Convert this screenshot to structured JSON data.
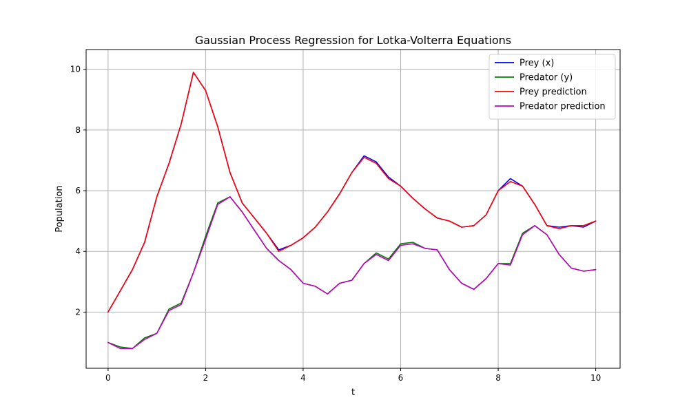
{
  "chart_data": {
    "type": "line",
    "title": "Gaussian Process Regression for Lotka-Volterra Equations",
    "xlabel": "t",
    "ylabel": "Population",
    "xlim": [
      -0.45,
      10.5
    ],
    "ylim": [
      0.15,
      10.65
    ],
    "xticks": [
      "0",
      "2",
      "4",
      "6",
      "8",
      "10"
    ],
    "yticks": [
      "2",
      "4",
      "6",
      "8",
      "10"
    ],
    "grid": true,
    "legend_position": "upper right",
    "x": [
      0,
      0.25,
      0.5,
      0.75,
      1.0,
      1.25,
      1.5,
      1.75,
      2.0,
      2.25,
      2.5,
      2.75,
      3.0,
      3.25,
      3.5,
      3.75,
      4.0,
      4.25,
      4.5,
      4.75,
      5.0,
      5.25,
      5.5,
      5.75,
      6.0,
      6.25,
      6.5,
      6.75,
      7.0,
      7.25,
      7.5,
      7.75,
      8.0,
      8.25,
      8.5,
      8.75,
      9.0,
      9.25,
      9.5,
      9.75,
      10.0
    ],
    "series": [
      {
        "name": "Prey (x)",
        "color": "#0000ff",
        "values": [
          2.0,
          2.7,
          3.4,
          4.3,
          5.8,
          6.9,
          8.2,
          9.9,
          9.3,
          8.1,
          6.6,
          5.6,
          5.1,
          4.6,
          4.05,
          4.2,
          4.45,
          4.8,
          5.3,
          5.9,
          6.6,
          7.15,
          6.95,
          6.45,
          6.15,
          5.75,
          5.4,
          5.1,
          5.0,
          4.8,
          4.85,
          5.2,
          6.0,
          6.4,
          6.15,
          5.55,
          4.85,
          4.8,
          4.85,
          4.8,
          5.0
        ]
      },
      {
        "name": "Predator (y)",
        "color": "#008000",
        "values": [
          1.0,
          0.85,
          0.8,
          1.15,
          1.3,
          2.1,
          2.3,
          3.3,
          4.5,
          5.6,
          5.8,
          5.3,
          4.7,
          4.1,
          3.7,
          3.4,
          2.95,
          2.85,
          2.6,
          2.95,
          3.05,
          3.6,
          3.95,
          3.75,
          4.25,
          4.3,
          4.1,
          4.05,
          3.4,
          2.95,
          2.75,
          3.1,
          3.6,
          3.6,
          4.6,
          4.85,
          4.55,
          3.9,
          3.45,
          3.35,
          3.4
        ]
      },
      {
        "name": "Prey prediction",
        "color": "#ff0000",
        "values": [
          2.0,
          2.7,
          3.4,
          4.3,
          5.8,
          6.9,
          8.2,
          9.9,
          9.3,
          8.1,
          6.6,
          5.6,
          5.1,
          4.6,
          4.0,
          4.2,
          4.45,
          4.8,
          5.3,
          5.9,
          6.6,
          7.1,
          6.9,
          6.4,
          6.15,
          5.75,
          5.4,
          5.1,
          5.0,
          4.8,
          4.85,
          5.2,
          6.0,
          6.3,
          6.15,
          5.55,
          4.85,
          4.75,
          4.85,
          4.85,
          5.0
        ]
      },
      {
        "name": "Predator prediction",
        "color": "#bf00bf",
        "values": [
          1.0,
          0.8,
          0.8,
          1.1,
          1.3,
          2.05,
          2.25,
          3.3,
          4.4,
          5.55,
          5.8,
          5.3,
          4.7,
          4.1,
          3.7,
          3.4,
          2.95,
          2.85,
          2.6,
          2.95,
          3.05,
          3.6,
          3.9,
          3.7,
          4.2,
          4.25,
          4.1,
          4.05,
          3.4,
          2.95,
          2.75,
          3.1,
          3.6,
          3.55,
          4.55,
          4.85,
          4.55,
          3.9,
          3.45,
          3.35,
          3.4
        ]
      }
    ]
  }
}
